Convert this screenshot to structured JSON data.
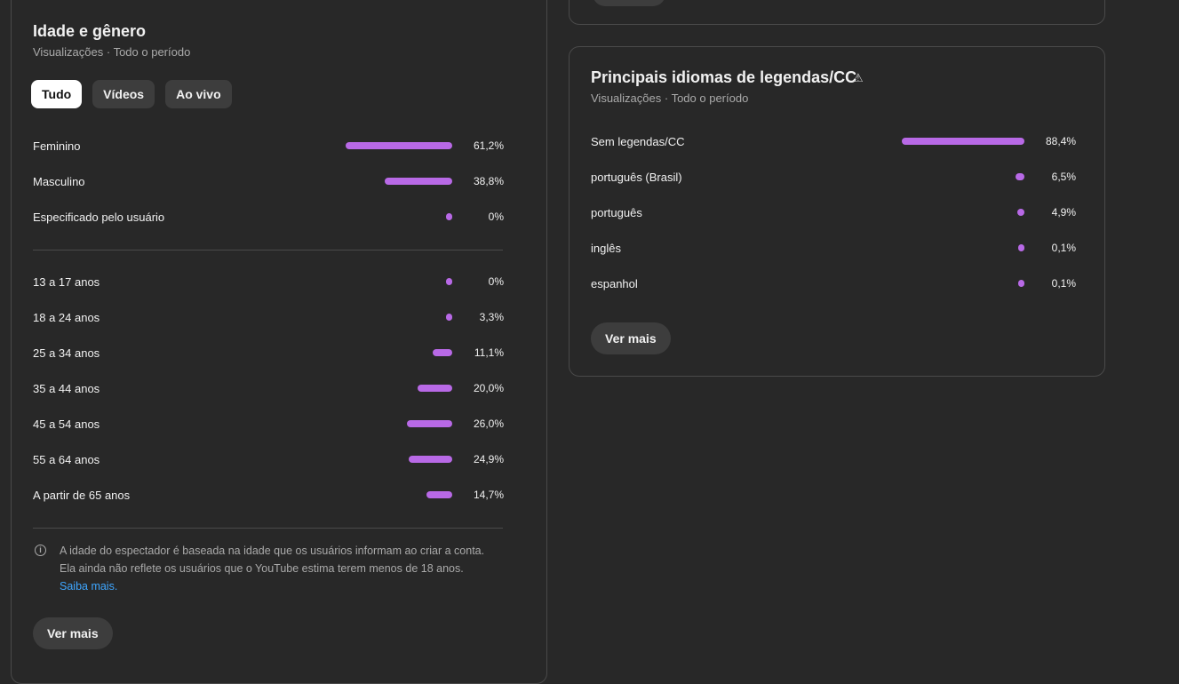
{
  "age_gender": {
    "title": "Idade e gênero",
    "subtitle": "Visualizações · Todo o período",
    "tabs": [
      {
        "label": "Tudo",
        "active": true
      },
      {
        "label": "Vídeos",
        "active": false
      },
      {
        "label": "Ao vivo",
        "active": false
      }
    ],
    "gender_rows": [
      {
        "label": "Feminino",
        "value": 61.2,
        "display": "61,2%"
      },
      {
        "label": "Masculino",
        "value": 38.8,
        "display": "38,8%"
      },
      {
        "label": "Especificado pelo usuário",
        "value": 0,
        "display": "0%"
      }
    ],
    "age_rows": [
      {
        "label": "13 a 17 anos",
        "value": 0,
        "display": "0%"
      },
      {
        "label": "18 a 24 anos",
        "value": 3.3,
        "display": "3,3%"
      },
      {
        "label": "25 a 34 anos",
        "value": 11.1,
        "display": "11,1%"
      },
      {
        "label": "35 a 44 anos",
        "value": 20.0,
        "display": "20,0%"
      },
      {
        "label": "45 a 54 anos",
        "value": 26.0,
        "display": "26,0%"
      },
      {
        "label": "55 a 64 anos",
        "value": 24.9,
        "display": "24,9%"
      },
      {
        "label": "A partir de 65 anos",
        "value": 14.7,
        "display": "14,7%"
      }
    ],
    "note_line1": "A idade do espectador é baseada na idade que os usuários informam ao criar a conta.",
    "note_line2": "Ela ainda não reflete os usuários que o YouTube estima terem menos de 18 anos.",
    "note_link": "Saiba mais.",
    "see_more": "Ver mais"
  },
  "subtitles": {
    "title": "Principais idiomas de legendas/CC",
    "subtitle": "Visualizações · Todo o período",
    "rows": [
      {
        "label": "Sem legendas/CC",
        "value": 88.4,
        "display": "88,4%"
      },
      {
        "label": "português (Brasil)",
        "value": 6.5,
        "display": "6,5%"
      },
      {
        "label": "português",
        "value": 4.9,
        "display": "4,9%"
      },
      {
        "label": "inglês",
        "value": 0.1,
        "display": "0,1%"
      },
      {
        "label": "espanhol",
        "value": 0.1,
        "display": "0,1%"
      }
    ],
    "see_more": "Ver mais"
  },
  "colors": {
    "bar": "#b869e6",
    "link": "#3ea6ff"
  }
}
